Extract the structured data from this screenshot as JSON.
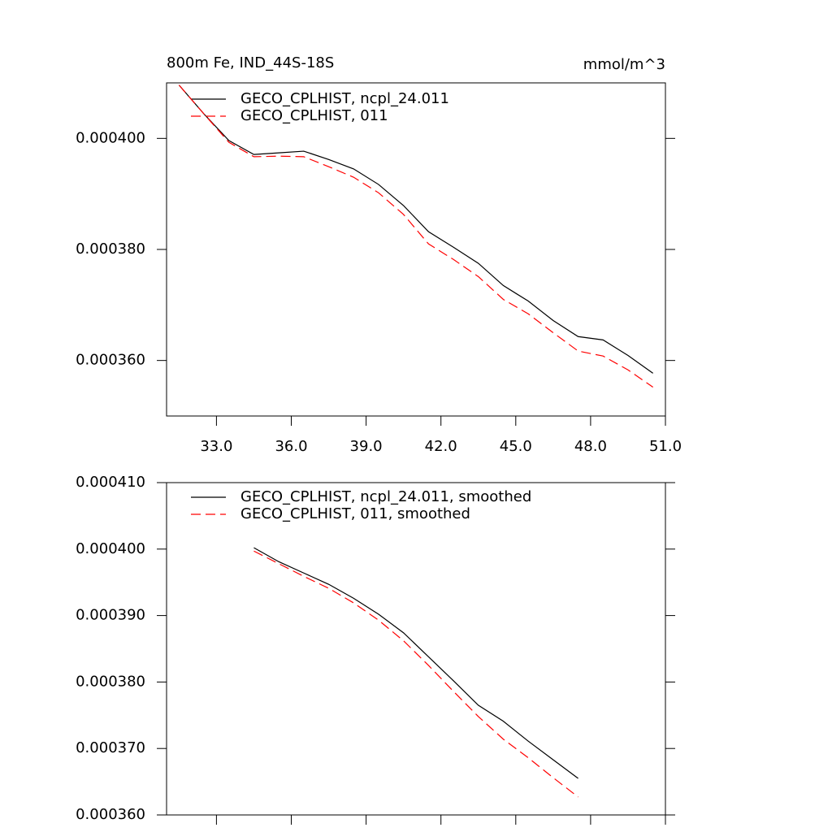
{
  "chart_data": [
    {
      "type": "line",
      "title": "800m Fe, IND_44S-18S",
      "units": "mmol/m^3",
      "x": [
        31.5,
        32.5,
        33.5,
        34.5,
        35.5,
        36.5,
        37.5,
        38.5,
        39.5,
        40.5,
        41.5,
        42.5,
        43.5,
        44.5,
        45.5,
        46.5,
        47.5,
        48.5,
        49.5,
        50.5
      ],
      "series": [
        {
          "name": "GECO_CPLHIST, ncpl_24.011",
          "color": "#000000",
          "dash": false,
          "values": [
            0.0004096,
            0.0004044,
            0.0003996,
            0.0003971,
            0.0003974,
            0.0003977,
            0.0003962,
            0.0003945,
            0.0003917,
            0.0003879,
            0.0003832,
            0.0003804,
            0.0003775,
            0.0003735,
            0.0003707,
            0.0003672,
            0.0003643,
            0.0003637,
            0.0003609,
            0.0003577
          ]
        },
        {
          "name": "GECO_CPLHIST, 011",
          "color": "#ff0000",
          "dash": true,
          "values": [
            0.0004096,
            0.0004044,
            0.0003993,
            0.0003967,
            0.0003968,
            0.0003967,
            0.0003949,
            0.000393,
            0.0003902,
            0.0003863,
            0.000381,
            0.0003782,
            0.0003751,
            0.000371,
            0.0003684,
            0.000365,
            0.0003617,
            0.0003608,
            0.0003583,
            0.0003552
          ]
        }
      ],
      "xlim": [
        31,
        51
      ],
      "xticks": [
        {
          "value": 33,
          "label": "33.0"
        },
        {
          "value": 36,
          "label": "36.0"
        },
        {
          "value": 39,
          "label": "39.0"
        },
        {
          "value": 42,
          "label": "42.0"
        },
        {
          "value": 45,
          "label": "45.0"
        },
        {
          "value": 48,
          "label": "48.0"
        },
        {
          "value": 51,
          "label": "51.0"
        }
      ],
      "xtick_labels": true,
      "ylim": [
        0.00035,
        0.00041
      ],
      "yticks": [
        {
          "value": 0.00036,
          "label": "0.000360"
        },
        {
          "value": 0.00038,
          "label": "0.000380"
        },
        {
          "value": 0.0004,
          "label": "0.000400"
        }
      ]
    },
    {
      "type": "line",
      "x": [
        34.5,
        35.5,
        36.5,
        37.5,
        38.5,
        39.5,
        40.5,
        41.5,
        42.5,
        43.5,
        44.5,
        45.5,
        46.5,
        47.5
      ],
      "series": [
        {
          "name": "GECO_CPLHIST, ncpl_24.011, smoothed",
          "color": "#000000",
          "dash": false,
          "values": [
            0.0004002,
            0.0003981,
            0.0003964,
            0.0003947,
            0.0003926,
            0.0003902,
            0.0003874,
            0.0003838,
            0.0003802,
            0.0003765,
            0.0003741,
            0.0003711,
            0.0003683,
            0.0003655
          ]
        },
        {
          "name": "GECO_CPLHIST, 011, smoothed",
          "color": "#ff0000",
          "dash": true,
          "values": [
            0.0003997,
            0.0003978,
            0.0003959,
            0.0003941,
            0.0003919,
            0.0003893,
            0.0003862,
            0.0003825,
            0.0003786,
            0.0003748,
            0.0003714,
            0.0003686,
            0.0003656,
            0.0003627
          ]
        }
      ],
      "xlim": [
        31,
        51
      ],
      "xticks": [
        33,
        36,
        39,
        42,
        45,
        48,
        51
      ],
      "xtick_labels": false,
      "ylim": [
        0.00036,
        0.00041
      ],
      "yticks": [
        {
          "value": 0.00036,
          "label": "0.000360"
        },
        {
          "value": 0.00037,
          "label": "0.000370"
        },
        {
          "value": 0.00038,
          "label": "0.000380"
        },
        {
          "value": 0.00039,
          "label": "0.000390"
        },
        {
          "value": 0.0004,
          "label": "0.000400"
        },
        {
          "value": 0.00041,
          "label": "0.000410"
        }
      ]
    }
  ]
}
